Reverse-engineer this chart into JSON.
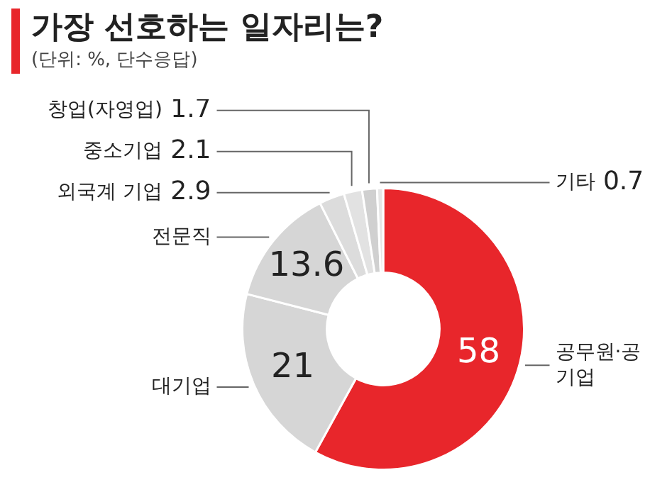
{
  "chart_data": {
    "type": "donut",
    "title": "가장 선호하는 일자리는?",
    "subtitle": "(단위: %, 단수응답)",
    "categories": [
      "공무원·공기업",
      "대기업",
      "전문직",
      "외국계 기업",
      "중소기업",
      "창업(자영업)",
      "기타"
    ],
    "values": [
      58,
      21,
      13.6,
      2.9,
      2.1,
      1.7,
      0.7
    ],
    "colors": [
      "#e8262b",
      "#d6d6d6",
      "#d6d6d6",
      "#dcdcdc",
      "#e2e2e2",
      "#d0d0d0",
      "#e6e6e6"
    ],
    "data_labels": true,
    "legend": false
  }
}
